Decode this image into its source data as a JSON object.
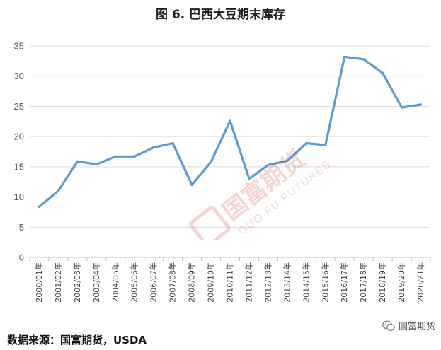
{
  "chart_data": {
    "type": "line",
    "title": "图 6. 巴西大豆期末库存",
    "xlabel": "",
    "ylabel": "",
    "ylim": [
      0,
      35
    ],
    "yticks": [
      0,
      5,
      10,
      15,
      20,
      25,
      30,
      35
    ],
    "grid": true,
    "legend": "none",
    "categories": [
      "2000/01年",
      "2001/02年",
      "2002/03年",
      "2003/04年",
      "2004/05年",
      "2005/06年",
      "2006/07年",
      "2007/08年",
      "2008/09年",
      "2009/10年",
      "2010/11年",
      "2011/12年",
      "2012/13年",
      "2013/14年",
      "2014/15年",
      "2015/16年",
      "2016/17年",
      "2017/18年",
      "2018/19年",
      "2019/20年",
      "2020/21年"
    ],
    "series": [
      {
        "values": [
          8.4,
          11.0,
          15.9,
          15.4,
          16.7,
          16.7,
          18.2,
          18.9,
          12.0,
          15.8,
          22.6,
          13.0,
          15.3,
          16.0,
          18.9,
          18.6,
          33.2,
          32.8,
          30.5,
          24.8,
          25.3
        ]
      }
    ],
    "line_color": "#5b9bd5"
  },
  "source": "数据来源：国富期货，USDA",
  "brand": "国富期货",
  "watermark": {
    "cn": "国富期货",
    "en": "GUO FU FUTURES"
  }
}
